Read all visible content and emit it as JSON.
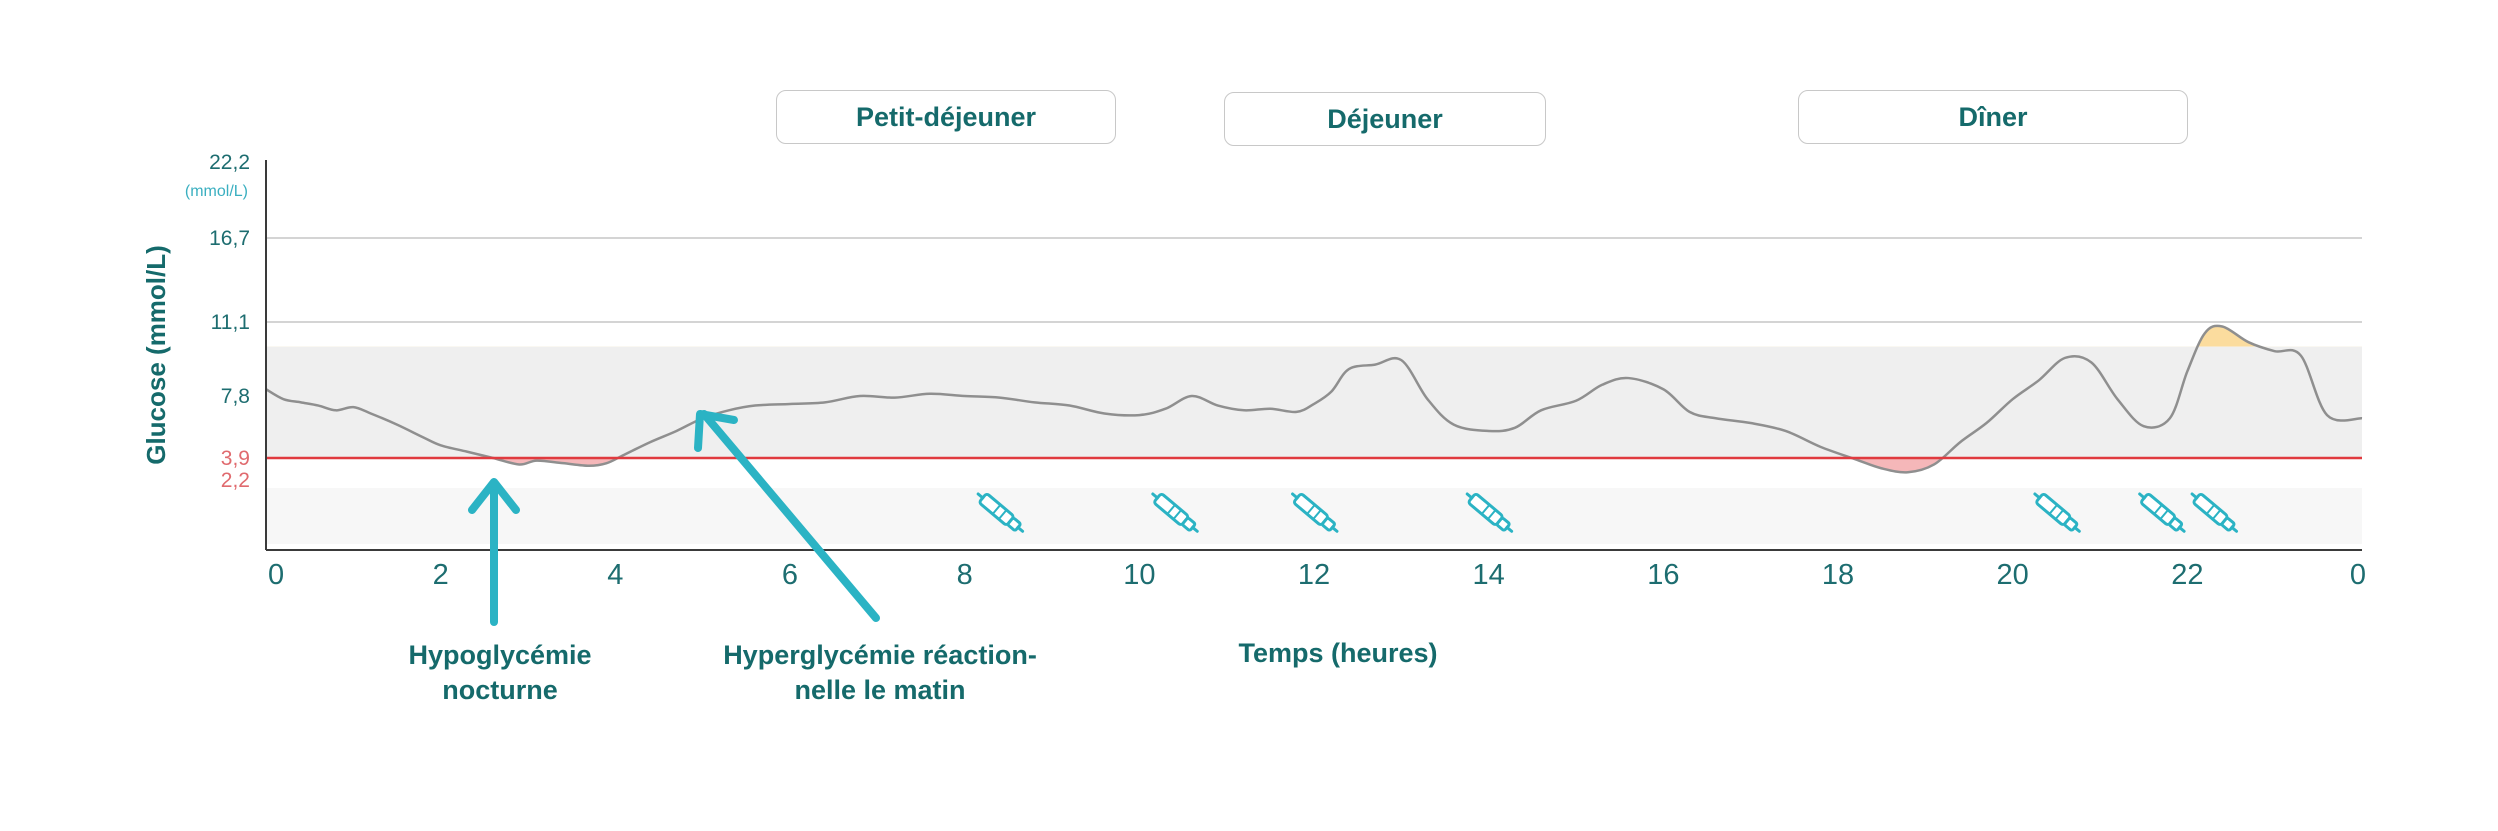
{
  "meals": [
    {
      "label": "Petit-déjeuner"
    },
    {
      "label": "Déjeuner"
    },
    {
      "label": "Dîner"
    }
  ],
  "annotations": {
    "hypo_line1": "Hypoglycémie",
    "hypo_line2": "nocturne",
    "hyper_line1": "Hyperglycémie réaction-",
    "hyper_line2": "nelle le matin"
  },
  "colors": {
    "teal_text": "#156a6b",
    "arrow": "#2bb3c4",
    "target_band": "#efefef",
    "low_band": "#f7f7f7",
    "threshold_line": "#e03a3f",
    "curve": "#8f8f8f",
    "hypo_fill": "#f5b7b9",
    "hyper_fill": "#fbdc9e"
  },
  "chart_data": {
    "type": "line",
    "xlabel": "Temps (heures)",
    "ylabel": "Glucose (mmol/L)",
    "y_unit": "(mmol/L)",
    "x_ticks": [
      "0",
      "2",
      "4",
      "6",
      "8",
      "10",
      "12",
      "14",
      "16",
      "18",
      "20",
      "22",
      "0"
    ],
    "y_ticks": [
      "22,2",
      "16,7",
      "11,1",
      "7,8",
      "3,9",
      "2,2"
    ],
    "target_range": [
      3.9,
      10.0
    ],
    "hypo_threshold": 3.9,
    "hyper_threshold": 10.0,
    "grid_lines_y": [
      16.7,
      11.1
    ],
    "insulin_injections_h": [
      8.4,
      10.4,
      12.0,
      14.0,
      20.5,
      21.7,
      22.3
    ],
    "series": [
      {
        "x": [
          0,
          0.2,
          0.4,
          0.6,
          0.8,
          1.0,
          1.2,
          1.5,
          1.8,
          2.0,
          2.3,
          2.6,
          2.9,
          3.1,
          3.4,
          3.7,
          3.9,
          4.1,
          4.4,
          4.7,
          5.0,
          5.3,
          5.6,
          6.0,
          6.4,
          6.8,
          7.2,
          7.6,
          8.0,
          8.4,
          8.8,
          9.2,
          9.6,
          10.0,
          10.3,
          10.6,
          10.9,
          11.2,
          11.5,
          11.8,
          12.0,
          12.2,
          12.4,
          12.7,
          13.0,
          13.3,
          13.6,
          14.0,
          14.3,
          14.6,
          15.0,
          15.3,
          15.6,
          16.0,
          16.3,
          16.6,
          17.0,
          17.4,
          17.8,
          18.2,
          18.5,
          18.8,
          19.1,
          19.4,
          19.7,
          20.0,
          20.3,
          20.6,
          20.9,
          21.2,
          21.5,
          21.8,
          22.0,
          22.2,
          22.4,
          22.7,
          23.0,
          23.3,
          23.6,
          24.0
        ],
        "y": [
          8.1,
          7.6,
          7.4,
          7.2,
          6.9,
          7.1,
          6.7,
          6.0,
          5.2,
          4.7,
          4.3,
          3.9,
          3.4,
          3.7,
          3.5,
          3.3,
          3.5,
          4.1,
          4.9,
          5.6,
          6.4,
          6.9,
          7.2,
          7.3,
          7.4,
          7.8,
          7.7,
          7.9,
          7.8,
          7.7,
          7.4,
          7.2,
          6.7,
          6.6,
          7.0,
          7.8,
          7.2,
          6.9,
          7.0,
          6.8,
          7.3,
          8.0,
          9.0,
          9.2,
          9.4,
          7.6,
          6.0,
          5.6,
          5.8,
          6.9,
          7.5,
          8.3,
          8.6,
          8.1,
          6.8,
          6.4,
          6.1,
          5.6,
          4.6,
          3.8,
          3.1,
          2.8,
          3.4,
          4.9,
          6.1,
          7.6,
          8.5,
          9.5,
          9.3,
          7.6,
          5.9,
          6.4,
          8.9,
          10.6,
          10.9,
          10.2,
          9.8,
          9.6,
          6.6,
          6.4
        ]
      }
    ]
  }
}
